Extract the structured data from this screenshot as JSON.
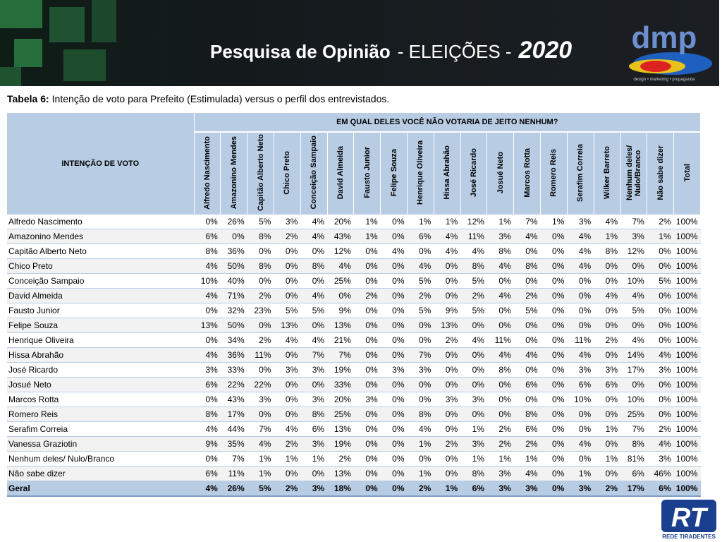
{
  "header": {
    "title": [
      "Pesquisa de Opinião",
      "- ELEIÇÕES -",
      "2020"
    ],
    "logo": "dmp",
    "logo_tagline": "design • marketing • propaganda"
  },
  "caption": {
    "label": "Tabela 6:",
    "text": "Intenção de voto para Prefeito (Estimulada) versus o perfil dos entrevistados."
  },
  "table": {
    "row_header": "INTENÇÃO DE VOTO",
    "group_header": "EM QUAL DELES VOCÊ NÃO VOTARIA DE JEITO NENHUM?",
    "columns": [
      "Alfredo Nascimento",
      "Amazonino Mendes",
      "Capitão Alberto Neto",
      "Chico Preto",
      "Conceição Sampaio",
      "David Almeida",
      "Fausto Junior",
      "Felipe Souza",
      "Henrique Oliveira",
      "Hissa Abrahão",
      "José Ricardo",
      "Josué Neto",
      "Marcos Rotta",
      "Romero Reis",
      "Serafim Correia",
      "Wilker Barreto",
      "Nenhum deles/ Nulo/Branco",
      "Não sabe dizer",
      "Total"
    ],
    "rows": [
      {
        "label": "Alfredo Nascimento",
        "cells": [
          "0%",
          "26%",
          "5%",
          "3%",
          "4%",
          "20%",
          "1%",
          "0%",
          "1%",
          "1%",
          "12%",
          "1%",
          "7%",
          "1%",
          "3%",
          "4%",
          "7%",
          "2%",
          "100%"
        ]
      },
      {
        "label": "Amazonino Mendes",
        "cells": [
          "6%",
          "0%",
          "8%",
          "2%",
          "4%",
          "43%",
          "1%",
          "0%",
          "6%",
          "4%",
          "11%",
          "3%",
          "4%",
          "0%",
          "4%",
          "1%",
          "3%",
          "1%",
          "100%"
        ]
      },
      {
        "label": "Capitão Alberto Neto",
        "cells": [
          "8%",
          "36%",
          "0%",
          "0%",
          "0%",
          "12%",
          "0%",
          "4%",
          "0%",
          "4%",
          "4%",
          "8%",
          "0%",
          "0%",
          "4%",
          "8%",
          "12%",
          "0%",
          "100%"
        ]
      },
      {
        "label": "Chico Preto",
        "cells": [
          "4%",
          "50%",
          "8%",
          "0%",
          "8%",
          "4%",
          "0%",
          "0%",
          "4%",
          "0%",
          "8%",
          "4%",
          "8%",
          "0%",
          "4%",
          "0%",
          "0%",
          "0%",
          "100%"
        ]
      },
      {
        "label": "Conceição Sampaio",
        "cells": [
          "10%",
          "40%",
          "0%",
          "0%",
          "0%",
          "25%",
          "0%",
          "0%",
          "5%",
          "0%",
          "5%",
          "0%",
          "0%",
          "0%",
          "0%",
          "0%",
          "10%",
          "5%",
          "100%"
        ]
      },
      {
        "label": "David Almeida",
        "cells": [
          "4%",
          "71%",
          "2%",
          "0%",
          "4%",
          "0%",
          "2%",
          "0%",
          "2%",
          "0%",
          "2%",
          "4%",
          "2%",
          "0%",
          "0%",
          "4%",
          "4%",
          "0%",
          "100%"
        ]
      },
      {
        "label": "Fausto Junior",
        "cells": [
          "0%",
          "32%",
          "23%",
          "5%",
          "5%",
          "9%",
          "0%",
          "0%",
          "5%",
          "9%",
          "5%",
          "0%",
          "5%",
          "0%",
          "0%",
          "0%",
          "5%",
          "0%",
          "100%"
        ]
      },
      {
        "label": "Felipe Souza",
        "cells": [
          "13%",
          "50%",
          "0%",
          "13%",
          "0%",
          "13%",
          "0%",
          "0%",
          "0%",
          "13%",
          "0%",
          "0%",
          "0%",
          "0%",
          "0%",
          "0%",
          "0%",
          "0%",
          "100%"
        ]
      },
      {
        "label": "Henrique Oliveira",
        "cells": [
          "0%",
          "34%",
          "2%",
          "4%",
          "4%",
          "21%",
          "0%",
          "0%",
          "0%",
          "2%",
          "4%",
          "11%",
          "0%",
          "0%",
          "11%",
          "2%",
          "4%",
          "0%",
          "100%"
        ]
      },
      {
        "label": "Hissa Abrahão",
        "cells": [
          "4%",
          "36%",
          "11%",
          "0%",
          "7%",
          "7%",
          "0%",
          "0%",
          "7%",
          "0%",
          "0%",
          "4%",
          "4%",
          "0%",
          "4%",
          "0%",
          "14%",
          "4%",
          "100%"
        ]
      },
      {
        "label": "José Ricardo",
        "cells": [
          "3%",
          "33%",
          "0%",
          "3%",
          "3%",
          "19%",
          "0%",
          "3%",
          "3%",
          "0%",
          "0%",
          "8%",
          "0%",
          "0%",
          "3%",
          "3%",
          "17%",
          "3%",
          "100%"
        ]
      },
      {
        "label": "Josué Neto",
        "cells": [
          "6%",
          "22%",
          "22%",
          "0%",
          "0%",
          "33%",
          "0%",
          "0%",
          "0%",
          "0%",
          "0%",
          "0%",
          "6%",
          "0%",
          "6%",
          "6%",
          "0%",
          "0%",
          "100%"
        ]
      },
      {
        "label": "Marcos Rotta",
        "cells": [
          "0%",
          "43%",
          "3%",
          "0%",
          "3%",
          "20%",
          "3%",
          "0%",
          "0%",
          "3%",
          "3%",
          "0%",
          "0%",
          "0%",
          "10%",
          "0%",
          "10%",
          "0%",
          "100%"
        ]
      },
      {
        "label": "Romero Reis",
        "cells": [
          "8%",
          "17%",
          "0%",
          "0%",
          "8%",
          "25%",
          "0%",
          "0%",
          "8%",
          "0%",
          "0%",
          "0%",
          "8%",
          "0%",
          "0%",
          "0%",
          "25%",
          "0%",
          "100%"
        ]
      },
      {
        "label": "Serafim Correia",
        "cells": [
          "4%",
          "44%",
          "7%",
          "4%",
          "6%",
          "13%",
          "0%",
          "0%",
          "4%",
          "0%",
          "1%",
          "2%",
          "6%",
          "0%",
          "0%",
          "1%",
          "7%",
          "2%",
          "100%"
        ]
      },
      {
        "label": "Vanessa Graziotin",
        "cells": [
          "9%",
          "35%",
          "4%",
          "2%",
          "3%",
          "19%",
          "0%",
          "0%",
          "1%",
          "2%",
          "3%",
          "2%",
          "2%",
          "0%",
          "4%",
          "0%",
          "8%",
          "4%",
          "100%"
        ]
      },
      {
        "label": "Nenhum deles/ Nulo/Branco",
        "cells": [
          "0%",
          "7%",
          "1%",
          "1%",
          "1%",
          "2%",
          "0%",
          "0%",
          "0%",
          "0%",
          "1%",
          "1%",
          "1%",
          "0%",
          "0%",
          "1%",
          "81%",
          "3%",
          "100%"
        ]
      },
      {
        "label": "Não sabe dizer",
        "cells": [
          "6%",
          "11%",
          "1%",
          "0%",
          "0%",
          "13%",
          "0%",
          "0%",
          "1%",
          "0%",
          "8%",
          "3%",
          "4%",
          "0%",
          "1%",
          "0%",
          "6%",
          "46%",
          "100%"
        ]
      }
    ],
    "total": {
      "label": "Geral",
      "cells": [
        "4%",
        "26%",
        "5%",
        "2%",
        "3%",
        "18%",
        "0%",
        "0%",
        "2%",
        "1%",
        "6%",
        "3%",
        "3%",
        "0%",
        "3%",
        "2%",
        "17%",
        "6%",
        "100%"
      ]
    }
  },
  "footer_logo": {
    "text": "RT",
    "sub": "REDE TIRADENTES"
  }
}
